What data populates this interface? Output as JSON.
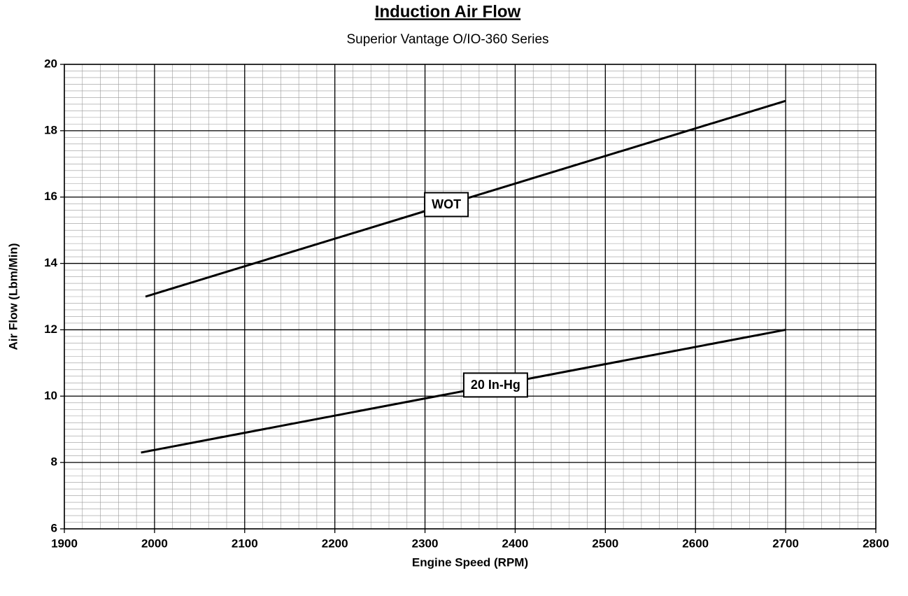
{
  "chart_data": {
    "type": "line",
    "title": "Induction Air Flow",
    "subtitle": "Superior Vantage O/IO-360 Series",
    "xlabel": "Engine Speed (RPM)",
    "ylabel": "Air Flow (Lbm/Min)",
    "series": [
      {
        "name": "WOT",
        "color": "#000000",
        "x": [
          1990,
          2700
        ],
        "values": [
          13.0,
          18.9
        ]
      },
      {
        "name": "20 In-Hg",
        "color": "#000000",
        "x": [
          1985,
          2700
        ],
        "values": [
          8.3,
          12.0
        ]
      }
    ],
    "xlim": [
      1900,
      2800
    ],
    "xticks": [
      1900,
      2000,
      2100,
      2200,
      2300,
      2400,
      2500,
      2600,
      2700,
      2800
    ],
    "ylim": [
      6,
      20
    ],
    "yticks": [
      6,
      8,
      10,
      12,
      14,
      16,
      18,
      20
    ],
    "grid": true,
    "minor_grid": {
      "x": 20,
      "y": 0.2
    }
  }
}
